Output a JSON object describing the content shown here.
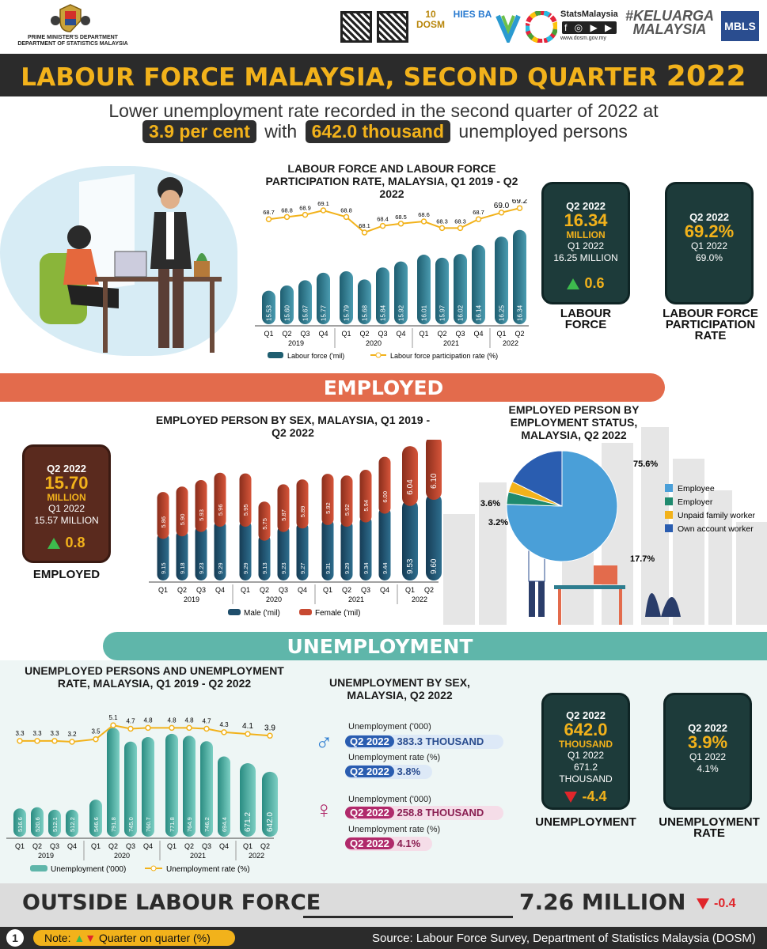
{
  "header": {
    "org_line1": "PRIME MINISTER'S DEPARTMENT",
    "org_line2": "DEPARTMENT OF STATISTICS MALAYSIA",
    "logos": [
      "10 DOSM",
      "HIES BA",
      "StatsMalaysia",
      "#KELUARGA MALAYSIA",
      "MBLS"
    ],
    "stats_url": "www.dosm.gov.my"
  },
  "title": {
    "main": "LABOUR FORCE MALAYSIA, SECOND QUARTER",
    "year": "2022"
  },
  "subtitle": {
    "line1": "Lower unemployment rate recorded in the second quarter of 2022 at",
    "rate": "3.9 per cent",
    "with": "with",
    "count": "642.0 thousand",
    "tail": "unemployed persons"
  },
  "labour_force_card": {
    "quarter": "Q2 2022",
    "value": "16.34",
    "unit": "MILLION",
    "prev_q": "Q1 2022",
    "prev_val": "16.25 MILLION",
    "change": "0.6",
    "label": "LABOUR FORCE"
  },
  "lfpr_card": {
    "quarter": "Q2 2022",
    "value": "69.2%",
    "prev_q": "Q1 2022",
    "prev_val": "69.0%",
    "label": "LABOUR FORCE PARTICIPATION RATE"
  },
  "employed_section": {
    "ribbon": "EMPLOYED"
  },
  "employed_card": {
    "quarter": "Q2 2022",
    "value": "15.70",
    "unit": "MILLION",
    "prev_q": "Q1 2022",
    "prev_val": "15.57 MILLION",
    "change": "0.8",
    "label": "EMPLOYED"
  },
  "unemployment_section": {
    "ribbon": "UNEMPLOYMENT"
  },
  "unemp_card": {
    "quarter": "Q2 2022",
    "value": "642.0",
    "unit": "THOUSAND",
    "prev_q": "Q1 2022",
    "prev_val1": "671.2",
    "prev_val2": "THOUSAND",
    "change": "-4.4",
    "label": "UNEMPLOYMENT"
  },
  "urate_card": {
    "quarter": "Q2 2022",
    "value": "3.9%",
    "prev_q": "Q1 2022",
    "prev_val": "4.1%",
    "label": "UNEMPLOYMENT RATE"
  },
  "unemp_sex": {
    "title": "UNEMPLOYMENT BY SEX, MALAYSIA, Q2 2022",
    "male": {
      "u_label": "Unemployment ('000)",
      "u_q": "Q2 2022",
      "u_val": "383.3 THOUSAND",
      "r_label": "Unemployment rate (%)",
      "r_q": "Q2 2022",
      "r_val": "3.8%"
    },
    "female": {
      "u_label": "Unemployment ('000)",
      "u_q": "Q2 2022",
      "u_val": "258.8 THOUSAND",
      "r_label": "Unemployment rate (%)",
      "r_q": "Q2 2022",
      "r_val": "4.1%"
    }
  },
  "outside": {
    "label": "OUTSIDE LABOUR FORCE",
    "value": "7.26 MILLION",
    "change": "-0.4"
  },
  "footer": {
    "page": "1",
    "note_prefix": "Note:",
    "note_text": "Quarter on quarter (%)",
    "source": "Source: Labour Force Survey, Department of Statistics Malaysia (DOSM)"
  },
  "colors": {
    "dark": "#2b2b2b",
    "gold": "#f2b21b",
    "teal": "#2e7d8f",
    "coral": "#e36b4c",
    "green": "#3dbb4d",
    "red": "#e0262b"
  },
  "chart_data": [
    {
      "type": "bar",
      "title": "LABOUR FORCE AND LABOUR FORCE PARTICIPATION RATE, MALAYSIA, Q1 2019 - Q2 2022",
      "categories": [
        "Q1",
        "Q2",
        "Q3",
        "Q4",
        "Q1",
        "Q2",
        "Q3",
        "Q4",
        "Q1",
        "Q2",
        "Q3",
        "Q4",
        "Q1",
        "Q2"
      ],
      "years": [
        {
          "label": "2019",
          "span": 4
        },
        {
          "label": "2020",
          "span": 4
        },
        {
          "label": "2021",
          "span": 4
        },
        {
          "label": "2022",
          "span": 2
        }
      ],
      "series": [
        {
          "name": "Labour force ('mil)",
          "kind": "bar",
          "values": [
            15.53,
            15.6,
            15.67,
            15.77,
            15.79,
            15.68,
            15.84,
            15.92,
            16.01,
            15.97,
            16.02,
            16.14,
            16.25,
            16.34
          ],
          "labels": [
            "15.53",
            "15.60",
            "15.67",
            "15.77",
            "15.79",
            "15.68",
            "15.84",
            "15.92",
            "16.01",
            "15.97",
            "16.02",
            "16.14",
            "16.25",
            "16.34"
          ]
        },
        {
          "name": "Labour force participation rate (%)",
          "kind": "line",
          "values": [
            68.7,
            68.8,
            68.9,
            69.1,
            68.8,
            68.1,
            68.4,
            68.5,
            68.6,
            68.3,
            68.3,
            68.7,
            69.0,
            69.2
          ]
        }
      ]
    },
    {
      "type": "bar",
      "title": "EMPLOYED PERSON BY SEX, MALAYSIA, Q1 2019 - Q2 2022",
      "categories": [
        "Q1",
        "Q2",
        "Q3",
        "Q4",
        "Q1",
        "Q2",
        "Q3",
        "Q4",
        "Q1",
        "Q2",
        "Q3",
        "Q4",
        "Q1",
        "Q2"
      ],
      "years": [
        {
          "label": "2019",
          "span": 4
        },
        {
          "label": "2020",
          "span": 4
        },
        {
          "label": "2021",
          "span": 4
        },
        {
          "label": "2022",
          "span": 2
        }
      ],
      "series": [
        {
          "name": "Male ('mil)",
          "values": [
            9.15,
            9.18,
            9.23,
            9.29,
            9.29,
            9.13,
            9.23,
            9.27,
            9.31,
            9.29,
            9.34,
            9.44,
            9.53,
            9.6
          ],
          "labels": [
            "9.15",
            "9.18",
            "9.23",
            "9.29",
            "9.29",
            "9.13",
            "9.23",
            "9.27",
            "9.31",
            "9.29",
            "9.34",
            "9.44",
            "9.53",
            "9.60"
          ]
        },
        {
          "name": "Female ('mil)",
          "values": [
            5.86,
            5.9,
            5.93,
            5.96,
            5.95,
            5.75,
            5.87,
            5.89,
            5.92,
            5.92,
            5.94,
            6.0,
            6.04,
            6.1
          ],
          "labels": [
            "5.86",
            "5.90",
            "5.93",
            "5.96",
            "5.95",
            "5.75",
            "5.87",
            "5.89",
            "5.92",
            "5.92",
            "5.94",
            "6.00",
            "6.04",
            "6.10"
          ]
        }
      ]
    },
    {
      "type": "pie",
      "title": "EMPLOYED PERSON BY EMPLOYMENT STATUS, MALAYSIA, Q2 2022",
      "slices": [
        {
          "name": "Employee",
          "value": 75.6,
          "label": "75.6%"
        },
        {
          "name": "Employer",
          "value": 3.6,
          "label": "3.6%"
        },
        {
          "name": "Unpaid family worker",
          "value": 3.2,
          "label": "3.2%"
        },
        {
          "name": "Own account worker",
          "value": 17.7,
          "label": "17.7%"
        }
      ]
    },
    {
      "type": "bar",
      "title": "UNEMPLOYED PERSONS AND UNEMPLOYMENT RATE, MALAYSIA, Q1 2019 - Q2 2022",
      "categories": [
        "Q1",
        "Q2",
        "Q3",
        "Q4",
        "Q1",
        "Q2",
        "Q3",
        "Q4",
        "Q1",
        "Q2",
        "Q3",
        "Q4",
        "Q1",
        "Q2"
      ],
      "years": [
        {
          "label": "2019",
          "span": 4
        },
        {
          "label": "2020",
          "span": 4
        },
        {
          "label": "2021",
          "span": 4
        },
        {
          "label": "2022",
          "span": 2
        }
      ],
      "series": [
        {
          "name": "Unemployment ('000)",
          "kind": "bar",
          "values": [
            516.6,
            520.6,
            512.1,
            512.2,
            546.6,
            791.8,
            745.0,
            760.7,
            771.8,
            764.9,
            746.2,
            694.4,
            671.2,
            642.0
          ],
          "labels": [
            "516.6",
            "520.6",
            "512.1",
            "512.2",
            "546.6",
            "791.8",
            "745.0",
            "760.7",
            "771.8",
            "764.9",
            "746.2",
            "694.4",
            "671.2",
            "642.0"
          ]
        },
        {
          "name": "Unemployment rate (%)",
          "kind": "line",
          "values": [
            3.3,
            3.3,
            3.3,
            3.2,
            3.5,
            5.1,
            4.7,
            4.8,
            4.8,
            4.8,
            4.7,
            4.3,
            4.1,
            3.9
          ],
          "labels": [
            "3.3",
            "3.3",
            "3.3",
            "3.2",
            "3.5",
            "5.1",
            "4.7",
            "4.8",
            "4.8",
            "4.8",
            "4.7",
            "4.3",
            "4.1",
            "3.9"
          ]
        }
      ]
    }
  ]
}
